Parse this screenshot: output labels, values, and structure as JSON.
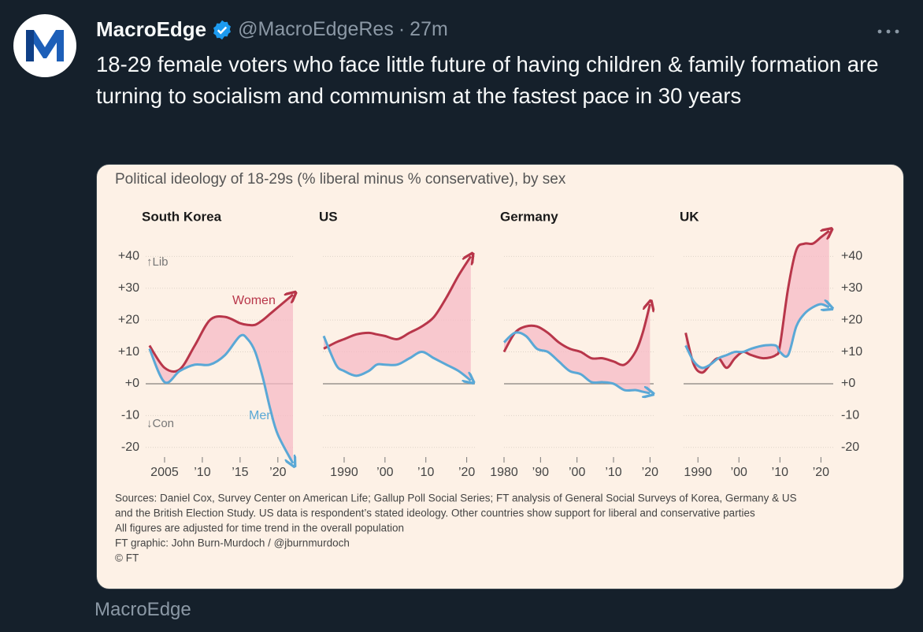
{
  "tweet": {
    "author": "MacroEdge",
    "handle": "@MacroEdgeRes",
    "separator": "·",
    "time": "27m",
    "text": "18-29 female voters who face little future of having children & family formation are turning to socialism and communism at the fastest pace in 30 years",
    "footer": "MacroEdge"
  },
  "figure": {
    "title": "Political ideology of 18-29s (% liberal minus % conservative), by sex",
    "notes": [
      "Sources: Daniel Cox, Survey Center on American Life; Gallup Poll Social Series; FT analysis of General Social Surveys of Korea, Germany & US",
      "and the British Election Study. US data is respondent’s stated ideology. Other countries show support for liberal and conservative parties",
      "All figures are adjusted for time trend in the overall population",
      "FT graphic: John Burn-Murdoch / @jburnmurdoch",
      "© FT"
    ]
  },
  "chart_data": [
    {
      "type": "line",
      "title": "South Korea",
      "x": [
        2003,
        2005,
        2007,
        2009,
        2011,
        2013,
        2015,
        2016,
        2017,
        2018,
        2019,
        2020,
        2022
      ],
      "xlim": [
        2002.5,
        2022
      ],
      "xticks": [
        2005,
        {
          "value": 2010,
          "label": "’10"
        },
        {
          "value": 2015,
          "label": "’15"
        },
        {
          "value": 2020,
          "label": "’20"
        }
      ],
      "ylim": [
        -26,
        49
      ],
      "yticks": [
        {
          "value": -20,
          "label": "-20"
        },
        {
          "value": -10,
          "label": "-10"
        },
        {
          "value": 0,
          "label": "+0"
        },
        {
          "value": 10,
          "label": "+10"
        },
        {
          "value": 20,
          "label": "+20"
        },
        {
          "value": 30,
          "label": "+30"
        },
        {
          "value": 40,
          "label": "+40"
        }
      ],
      "ytick_labels": "left",
      "grid": true,
      "fill_between": "#f5b9c6",
      "annotations": [
        "↑Lib",
        "↓Con"
      ],
      "series": [
        {
          "name": "Women",
          "color": "#b8364a",
          "values": [
            12,
            5,
            4.5,
            12,
            20,
            21,
            19,
            18.5,
            18.5,
            20,
            22,
            24,
            28
          ]
        },
        {
          "name": "Men",
          "color": "#5aa8d6",
          "values": [
            11,
            0.5,
            4,
            6,
            6,
            9,
            15,
            14,
            10,
            2,
            -8,
            -16,
            -25
          ]
        }
      ]
    },
    {
      "type": "line",
      "title": "US",
      "x": [
        1985,
        1988,
        1990,
        1993,
        1996,
        1998,
        2000,
        2003,
        2006,
        2009,
        2012,
        2015,
        2018,
        2021
      ],
      "xlim": [
        1984.8,
        2022
      ],
      "xticks": [
        1990,
        {
          "value": 2000,
          "label": "’00"
        },
        {
          "value": 2010,
          "label": "’10"
        },
        {
          "value": 2020,
          "label": "’20"
        }
      ],
      "ylim": [
        -26,
        49
      ],
      "yticks": [
        -20,
        -10,
        0,
        10,
        20,
        30,
        40
      ],
      "ytick_labels": "none",
      "grid": true,
      "fill_between": "#f5b9c6",
      "series": [
        {
          "color": "#b8364a",
          "values": [
            11,
            13,
            14,
            15.5,
            16,
            15.5,
            15,
            14,
            16,
            18,
            21,
            27,
            34,
            40
          ]
        },
        {
          "color": "#5aa8d6",
          "values": [
            15,
            6,
            4,
            2.5,
            4,
            6,
            6,
            6,
            8,
            10,
            8,
            6,
            4,
            1
          ]
        }
      ]
    },
    {
      "type": "line",
      "title": "Germany",
      "x": [
        1980,
        1983,
        1986,
        1989,
        1992,
        1995,
        1998,
        2001,
        2004,
        2007,
        2010,
        2013,
        2016,
        2018,
        2020
      ],
      "xlim": [
        1980,
        2021
      ],
      "xticks": [
        1980,
        {
          "value": 1990,
          "label": "’90"
        },
        {
          "value": 2000,
          "label": "’00"
        },
        {
          "value": 2010,
          "label": "’10"
        },
        {
          "value": 2020,
          "label": "’20"
        }
      ],
      "ylim": [
        -26,
        49
      ],
      "yticks": [
        -20,
        -10,
        0,
        10,
        20,
        30,
        40
      ],
      "ytick_labels": "none",
      "grid": true,
      "fill_between": "#f5b9c6",
      "series": [
        {
          "color": "#b8364a",
          "values": [
            10,
            16,
            18,
            18,
            16,
            13,
            11,
            10,
            8,
            8,
            7,
            6,
            10,
            16,
            25
          ]
        },
        {
          "color": "#5aa8d6",
          "values": [
            13,
            16,
            15,
            11,
            10,
            7,
            4,
            3,
            0.5,
            0.5,
            0,
            -2,
            -2,
            -2.5,
            -3
          ]
        }
      ]
    },
    {
      "type": "line",
      "title": "UK",
      "x": [
        1987,
        1989,
        1991,
        1993,
        1995,
        1997,
        1999,
        2001,
        2003,
        2006,
        2009,
        2010,
        2012,
        2014,
        2016,
        2018,
        2020,
        2022
      ],
      "xlim": [
        1986.5,
        2023
      ],
      "xticks": [
        1990,
        {
          "value": 2000,
          "label": "’00"
        },
        {
          "value": 2010,
          "label": "’10"
        },
        {
          "value": 2020,
          "label": "’20"
        }
      ],
      "ylim": [
        -26,
        49
      ],
      "yticks": [
        {
          "value": -20,
          "label": "-20"
        },
        {
          "value": -10,
          "label": "-10"
        },
        {
          "value": 0,
          "label": "+0"
        },
        {
          "value": 10,
          "label": "+10"
        },
        {
          "value": 20,
          "label": "+20"
        },
        {
          "value": 30,
          "label": "+30"
        },
        {
          "value": 40,
          "label": "+40"
        }
      ],
      "ytick_labels": "right",
      "grid": true,
      "fill_between": "#f5b9c6",
      "series": [
        {
          "color": "#b8364a",
          "values": [
            16,
            6,
            3.5,
            6,
            8,
            5,
            8,
            10,
            9,
            8,
            9,
            12,
            30,
            42,
            44,
            44,
            46,
            48
          ]
        },
        {
          "color": "#5aa8d6",
          "values": [
            12,
            7,
            5,
            6,
            8,
            9,
            10,
            10,
            11,
            12,
            12,
            10,
            9,
            18,
            22,
            24,
            25,
            24
          ]
        }
      ]
    }
  ]
}
